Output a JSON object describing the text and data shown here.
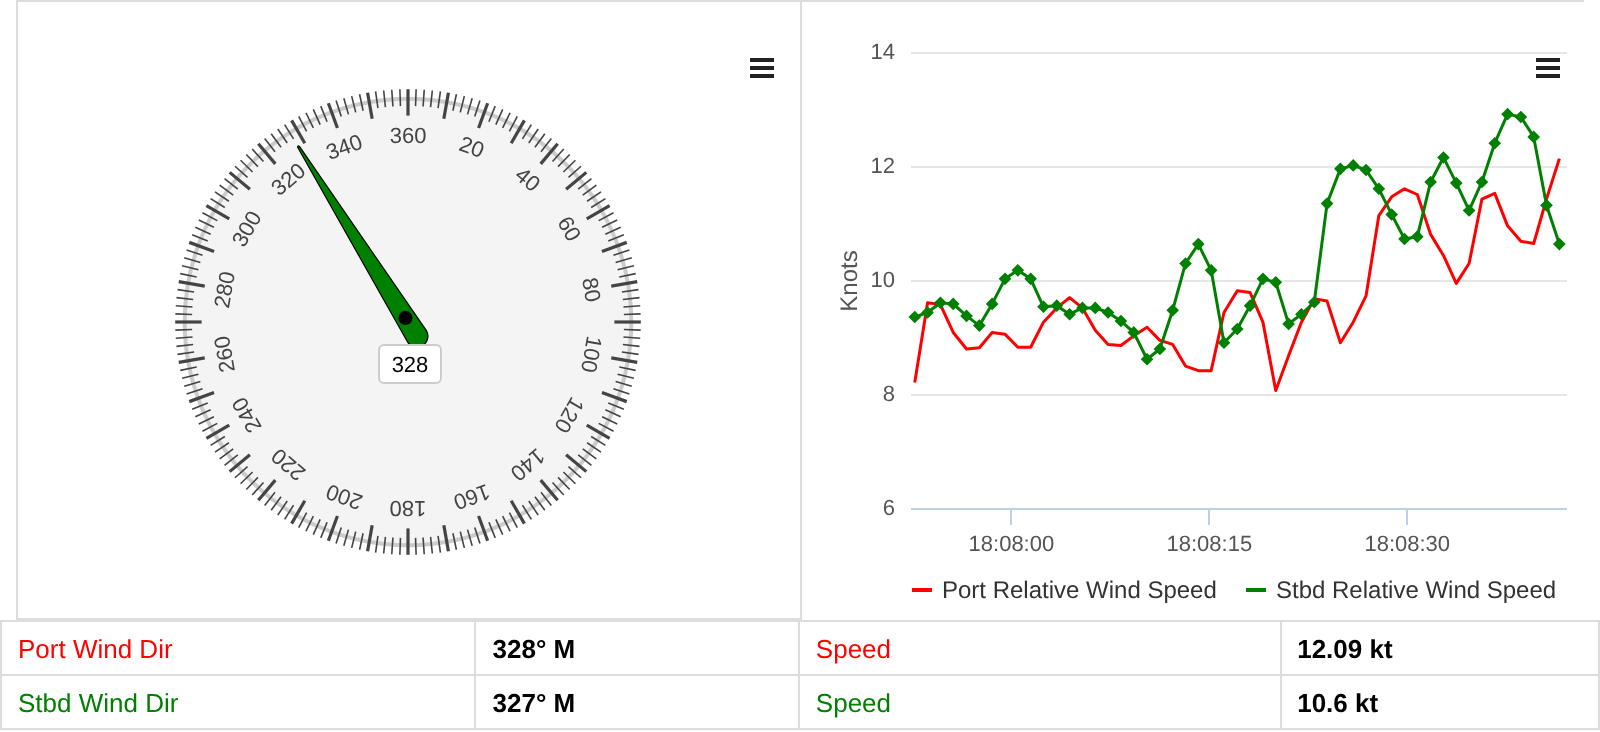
{
  "chart_data": [
    {
      "type": "other",
      "values": [
        328
      ],
      "data_labels": true,
      "annotations": [
        "20",
        "40",
        "60",
        "80",
        "100",
        "120",
        "140",
        "160",
        "180",
        "200",
        "220",
        "240",
        "260",
        "280",
        "300",
        "320",
        "340",
        "360"
      ]
    },
    {
      "type": "line",
      "ylabel": "Knots",
      "legend": "bottom",
      "grid": "y",
      "x": [
        18.13132,
        18.13159,
        18.13186,
        18.13213,
        18.13241,
        18.13268,
        18.13295,
        18.13322,
        18.13349,
        18.13376,
        18.13403,
        18.13431,
        18.13458,
        18.13485,
        18.13512,
        18.13539,
        18.13566,
        18.13593,
        18.13621,
        18.13648,
        18.13675,
        18.13702,
        18.13729,
        18.13756,
        18.13783,
        18.13811,
        18.13838,
        18.13865,
        18.13892,
        18.13919,
        18.13946,
        18.13973,
        18.14,
        18.14028,
        18.14055,
        18.14082,
        18.14109,
        18.14136,
        18.14163,
        18.1419,
        18.14218,
        18.14245,
        18.14272,
        18.14299,
        18.14326,
        18.14353,
        18.1438,
        18.14408,
        18.14435,
        18.14462,
        18.14489
      ],
      "series": [
        {
          "name": "Port Relative Wind Speed",
          "color": "#ff0000",
          "marker": "none",
          "values": [
            8.2,
            9.6,
            9.57,
            9.08,
            8.79,
            8.81,
            9.08,
            9.05,
            8.82,
            8.82,
            9.26,
            9.51,
            9.69,
            9.51,
            9.12,
            8.87,
            8.85,
            9.02,
            9.17,
            8.94,
            8.87,
            8.49,
            8.41,
            8.41,
            9.43,
            9.81,
            9.78,
            9.26,
            8.06,
            8.67,
            9.26,
            9.67,
            9.63,
            8.9,
            9.26,
            9.72,
            11.13,
            11.46,
            11.6,
            11.5,
            10.8,
            10.43,
            9.94,
            10.29,
            11.42,
            11.52,
            10.95,
            10.68,
            10.64,
            11.42,
            12.13
          ]
        },
        {
          "name": "Stbd Relative Wind Speed",
          "color": "#008000",
          "marker": "diamond",
          "values": [
            9.35,
            9.43,
            9.6,
            9.58,
            9.37,
            9.2,
            9.58,
            10.02,
            10.17,
            10.02,
            9.53,
            9.55,
            9.4,
            9.51,
            9.51,
            9.43,
            9.28,
            9.08,
            8.61,
            8.79,
            9.47,
            10.29,
            10.63,
            10.17,
            8.9,
            9.14,
            9.55,
            10.02,
            9.96,
            9.23,
            9.4,
            9.61,
            11.34,
            11.95,
            12.01,
            11.93,
            11.6,
            11.15,
            10.72,
            10.76,
            11.72,
            12.15,
            11.7,
            11.22,
            11.72,
            12.4,
            12.91,
            12.86,
            12.51,
            11.31,
            10.63
          ]
        }
      ],
      "xlim": [
        18.13122,
        18.14503
      ],
      "xticks": [
        {
          "value": 18.133333,
          "label": "18:08:00"
        },
        {
          "value": 18.1375,
          "label": "18:08:15"
        },
        {
          "value": 18.141667,
          "label": "18:08:30"
        }
      ],
      "ylim": [
        6,
        14
      ],
      "yticks": [
        6,
        8,
        10,
        12,
        14
      ]
    },
    {
      "type": "other",
      "annotations": [
        "Port Wind Dir",
        "328° M",
        "Speed",
        "12.09 kt",
        "Stbd Wind Dir",
        "327° M",
        "Speed",
        "10.6 kt"
      ],
      "colors": [
        "#ff0000",
        "#000000",
        "#ff0000",
        "#000000",
        "#008000",
        "#000000",
        "#008000",
        "#000000"
      ]
    }
  ]
}
